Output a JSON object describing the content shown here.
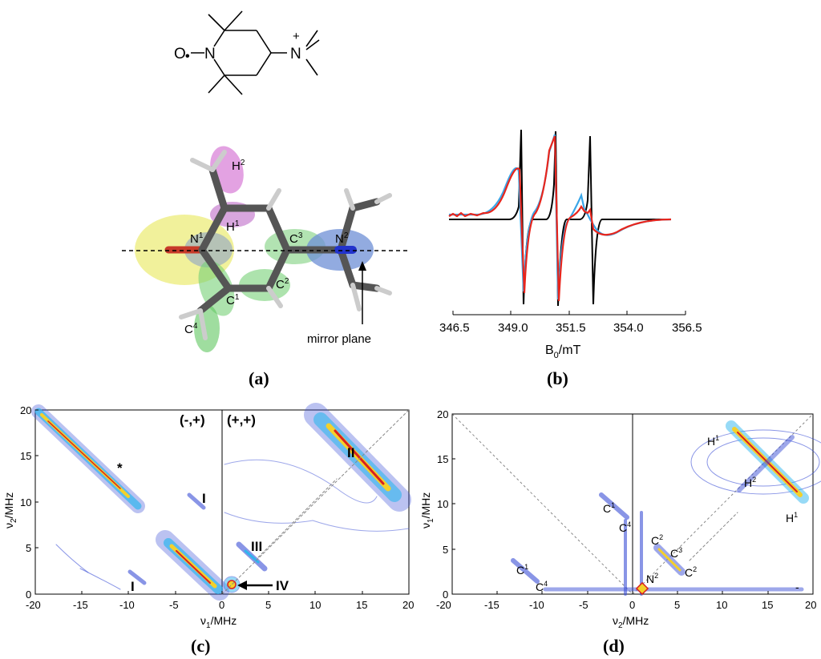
{
  "structure": {
    "atom_O": "O",
    "atom_N": "N",
    "charge": "+",
    "radical": "•"
  },
  "panel_a": {
    "label": "(a)",
    "atoms": {
      "H2": "H",
      "H2_sup": "2",
      "H1": "H",
      "H1_sup": "1",
      "N1": "N",
      "N1_sup": "1",
      "C3": "C",
      "C3_sup": "3",
      "N2": "N",
      "N2_sup": "2",
      "C2": "C",
      "C2_sup": "2",
      "C1": "C",
      "C1_sup": "1",
      "C4": "C",
      "C4_sup": "4"
    },
    "mirror_label": "mirror plane"
  },
  "panel_b": {
    "label": "(b)",
    "x_ticks": [
      "346.5",
      "349.0",
      "351.5",
      "354.0",
      "356.5"
    ],
    "xlabel_main": "B",
    "xlabel_sub": "0",
    "xlabel_rest": "/mT",
    "colors": {
      "exp1": "#e8251c",
      "exp2": "#3aa6e8",
      "sim": "#000000"
    }
  },
  "panel_c": {
    "label": "(c)",
    "x_ticks": [
      "-20",
      "-15",
      "-10",
      "-5",
      "0",
      "5",
      "10",
      "15",
      "20"
    ],
    "y_ticks": [
      "0",
      "5",
      "10",
      "15",
      "20"
    ],
    "xlabel_main": "ν",
    "xlabel_sub": "1",
    "xlabel_rest": "/MHz",
    "ylabel_main": "ν",
    "ylabel_sub": "2",
    "ylabel_rest": "/MHz",
    "quadrant_left": "(-,+)",
    "quadrant_right": "(+,+)",
    "annotations": [
      "I",
      "I",
      "II",
      "III",
      "IV",
      "*"
    ]
  },
  "panel_d": {
    "label": "(d)",
    "x_ticks": [
      "-20",
      "-15",
      "-10",
      "-5",
      "0",
      "5",
      "10",
      "15",
      "20"
    ],
    "y_ticks": [
      "0",
      "5",
      "10",
      "15",
      "20"
    ],
    "xlabel_main": "ν",
    "xlabel_sub": "2",
    "xlabel_rest": "/MHz",
    "ylabel_main": "ν",
    "ylabel_sub": "1",
    "ylabel_rest": "/MHz",
    "peaks": {
      "H1a": "H",
      "H1a_sup": "1",
      "H2": "H",
      "H2_sup": "2",
      "H1b": "H",
      "H1b_sup": "1",
      "C1a": "C",
      "C1a_sup": "1",
      "C4a": "C",
      "C4a_sup": "4",
      "C2a": "C",
      "C2a_sup": "2",
      "C3": "C",
      "C3_sup": "3",
      "C2b": "C",
      "C2b_sup": "2",
      "C1b": "C",
      "C1b_sup": "1",
      "C4b": "C",
      "C4b_sup": "4",
      "N2": "N",
      "N2_sup": "2"
    },
    "dash_mark": "-"
  }
}
